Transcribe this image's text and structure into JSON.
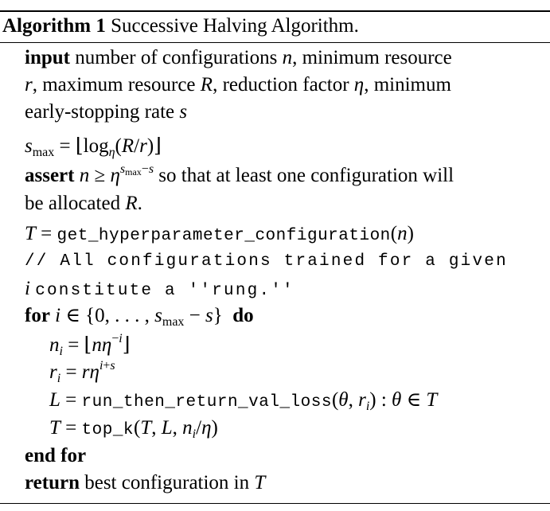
{
  "algorithm": {
    "label": "Algorithm 1",
    "title": "Successive Halving Algorithm.",
    "input_kw": "input",
    "input_line1": "number of configurations n, minimum resource",
    "input_line2": "r, maximum resource R, reduction factor η, minimum",
    "input_line3": "early-stopping rate s",
    "smax_line": "s_max = ⌊log_η(R/r)⌋",
    "assert_kw": "assert",
    "assert_text1": "so that at least one configuration will",
    "assert_text2": "be allocated R.",
    "T_func": "get_hyperparameter_configuration",
    "comment_line1": "// All configurations trained for a given",
    "comment_line2": "constitute a ''rung.''",
    "for_kw": "for",
    "do_kw": "do",
    "run_func": "run_then_return_val_loss",
    "topk_func": "top_k",
    "end_for_kw": "end for",
    "return_kw": "return",
    "return_text": "best configuration in T"
  }
}
